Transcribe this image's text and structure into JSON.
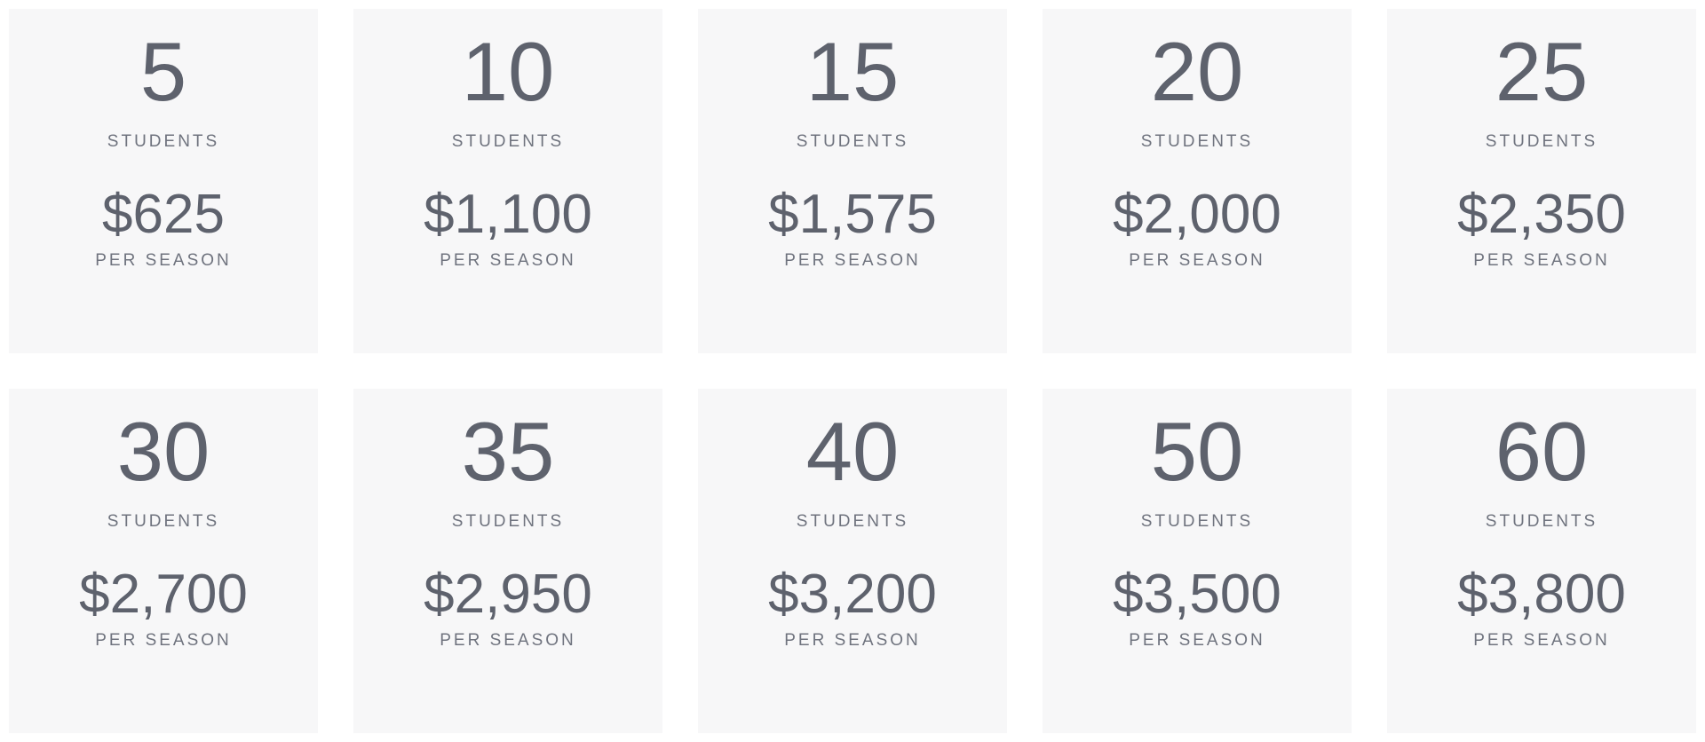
{
  "theme": {
    "page_background": "#ffffff",
    "card_background": "#f7f7f8",
    "number_color": "#5e626d",
    "label_color": "#6f737e"
  },
  "labels": {
    "students": "STUDENTS",
    "per_season": "PER SEASON"
  },
  "tiers": [
    {
      "students": "5",
      "price": "$625"
    },
    {
      "students": "10",
      "price": "$1,100"
    },
    {
      "students": "15",
      "price": "$1,575"
    },
    {
      "students": "20",
      "price": "$2,000"
    },
    {
      "students": "25",
      "price": "$2,350"
    },
    {
      "students": "30",
      "price": "$2,700"
    },
    {
      "students": "35",
      "price": "$2,950"
    },
    {
      "students": "40",
      "price": "$3,200"
    },
    {
      "students": "50",
      "price": "$3,500"
    },
    {
      "students": "60",
      "price": "$3,800"
    }
  ]
}
